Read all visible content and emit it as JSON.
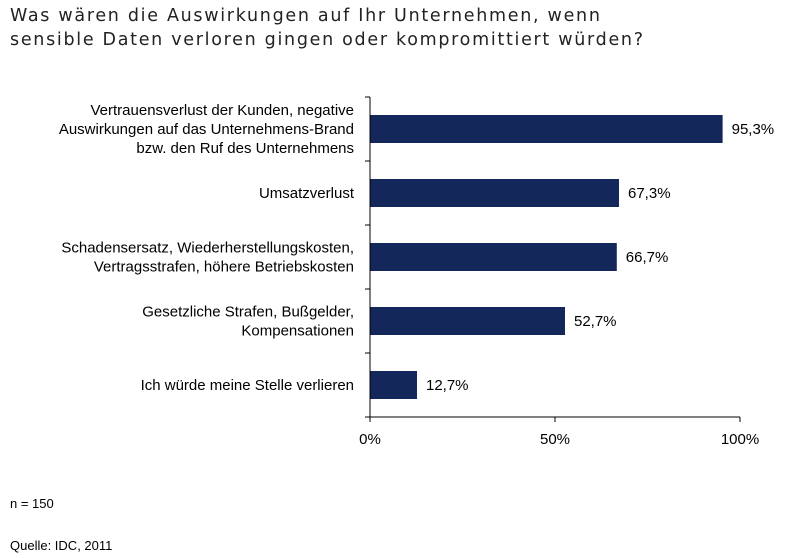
{
  "title_lines": [
    "Was wären die Auswirkungen auf Ihr Unternehmen, wenn",
    "sensible Daten verloren gingen oder kompromittiert würden?"
  ],
  "colors": {
    "bar": "#13275a",
    "axis": "#000000"
  },
  "chart_data": {
    "type": "bar",
    "orientation": "horizontal",
    "categories": [
      [
        "Vertrauensverlust der Kunden, negative",
        "Auswirkungen auf das Unternehmens-Brand",
        "bzw. den Ruf des Unternehmens"
      ],
      [
        "Umsatzverlust"
      ],
      [
        "Schadensersatz, Wiederherstellungskosten,",
        "Vertragsstrafen, höhere Betriebskosten"
      ],
      [
        "Gesetzliche Strafen, Bußgelder,",
        "Kompensationen"
      ],
      [
        "Ich würde meine Stelle verlieren"
      ]
    ],
    "values": [
      95.3,
      67.3,
      66.7,
      52.7,
      12.7
    ],
    "value_labels": [
      "95,3%",
      "67,3%",
      "66,7%",
      "52,7%",
      "12,7%"
    ],
    "xlim": [
      0,
      100
    ],
    "xticks": [
      0,
      50,
      100
    ],
    "xtick_labels": [
      "0%",
      "50%",
      "100%"
    ],
    "grid": false,
    "legend": "none"
  },
  "footnotes": {
    "sample": "n = 150",
    "source": "Quelle: IDC, 2011"
  }
}
